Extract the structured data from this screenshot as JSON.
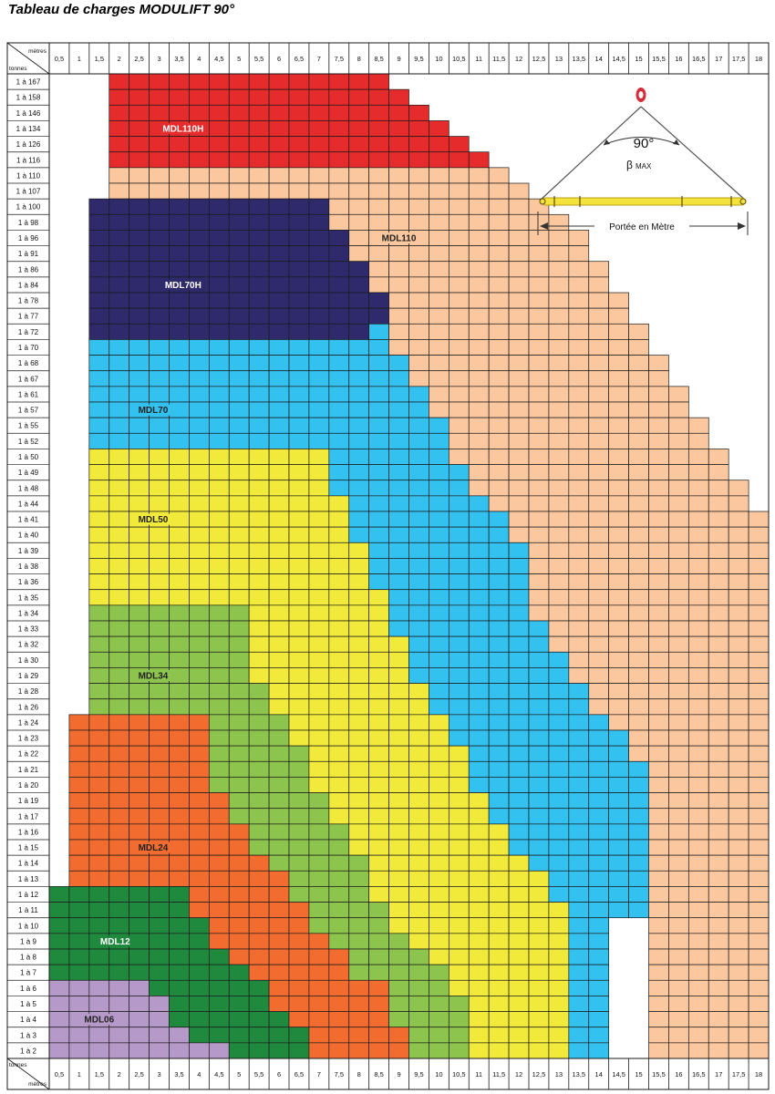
{
  "title": "Tableau de charges MODULIFT 90°",
  "chart_data": {
    "type": "heatmap",
    "title": "Tableau de charges MODULIFT 90°",
    "corner_top": "mètres",
    "corner_bottom": "tonnes",
    "spans_m": [
      "0,5",
      "1",
      "1,5",
      "2",
      "2,5",
      "3",
      "3,5",
      "4",
      "4,5",
      "5",
      "5,5",
      "6",
      "6,5",
      "7",
      "7,5",
      "8",
      "8,5",
      "9",
      "9,5",
      "10",
      "10,5",
      "11",
      "11,5",
      "12",
      "12,5",
      "13",
      "13,5",
      "14",
      "14,5",
      "15",
      "15,5",
      "16",
      "16,5",
      "17",
      "17,5",
      "18"
    ],
    "loads_t": [
      "1 à 167",
      "1 à 158",
      "1 à 146",
      "1 à 134",
      "1 à 126",
      "1 à 116",
      "1 à 110",
      "1 à 107",
      "1 à 100",
      "1 à 98",
      "1 à 96",
      "1 à 91",
      "1 à 86",
      "1 à 84",
      "1 à 78",
      "1 à 77",
      "1 à 72",
      "1 à 70",
      "1 à 68",
      "1 à 67",
      "1 à 61",
      "1 à 57",
      "1 à 55",
      "1 à 52",
      "1 à 50",
      "1 à 49",
      "1 à 48",
      "1 à 44",
      "1 à 41",
      "1 à 40",
      "1 à 39",
      "1 à 38",
      "1 à 36",
      "1 à 35",
      "1 à 34",
      "1 à 33",
      "1 à 32",
      "1 à 30",
      "1 à 29",
      "1 à 28",
      "1 à 26",
      "1 à 24",
      "1 à 23",
      "1 à 22",
      "1 à 21",
      "1 à 20",
      "1 à 19",
      "1 à 17",
      "1 à 16",
      "1 à 15",
      "1 à 14",
      "1 à 13",
      "1 à 12",
      "1 à 11",
      "1 à 10",
      "1 à 9",
      "1 à 8",
      "1 à 7",
      "1 à 6",
      "1 à 5",
      "1 à 4",
      "1 à 3",
      "1 à 2"
    ],
    "models": [
      {
        "name": "MDL110H",
        "color": "#e52b2b",
        "label_color": "#ffffff"
      },
      {
        "name": "MDL110",
        "color": "#fbc79e",
        "label_color": "#222222"
      },
      {
        "name": "MDL70H",
        "color": "#2e2a6b",
        "label_color": "#ffffff"
      },
      {
        "name": "MDL70",
        "color": "#33c1ef",
        "label_color": "#222222"
      },
      {
        "name": "MDL50",
        "color": "#f2ea3a",
        "label_color": "#222222"
      },
      {
        "name": "MDL34",
        "color": "#8cc44d",
        "label_color": "#222222"
      },
      {
        "name": "MDL24",
        "color": "#f26c30",
        "label_color": "#222222"
      },
      {
        "name": "MDL12",
        "color": "#1f8a3e",
        "label_color": "#ffffff"
      },
      {
        "name": "MDL06",
        "color": "#b599c9",
        "label_color": "#222222"
      }
    ],
    "regions": {
      "MDL110H": [
        [
          0,
          5,
          3,
          16
        ],
        [
          1,
          1,
          17,
          17
        ],
        [
          2,
          2,
          17,
          18
        ],
        [
          3,
          3,
          17,
          19
        ],
        [
          4,
          4,
          17,
          20
        ],
        [
          5,
          5,
          17,
          21
        ]
      ],
      "MDL110": [
        [
          6,
          7,
          3,
          21
        ],
        [
          6,
          7,
          22,
          22
        ],
        [
          7,
          7,
          23,
          23
        ],
        [
          8,
          8,
          14,
          24
        ],
        [
          9,
          9,
          14,
          25
        ],
        [
          10,
          10,
          15,
          25
        ],
        [
          10,
          10,
          26,
          26
        ],
        [
          11,
          11,
          15,
          26
        ],
        [
          12,
          12,
          16,
          27
        ],
        [
          13,
          13,
          16,
          27
        ],
        [
          14,
          14,
          16,
          28
        ],
        [
          15,
          15,
          16,
          28
        ],
        [
          16,
          16,
          17,
          29
        ],
        [
          17,
          17,
          17,
          29
        ],
        [
          18,
          18,
          18,
          30
        ],
        [
          19,
          19,
          18,
          30
        ],
        [
          20,
          20,
          19,
          31
        ],
        [
          21,
          21,
          19,
          31
        ],
        [
          22,
          22,
          20,
          32
        ],
        [
          23,
          23,
          20,
          32
        ],
        [
          24,
          24,
          20,
          33
        ],
        [
          25,
          25,
          21,
          33
        ],
        [
          26,
          26,
          21,
          34
        ],
        [
          27,
          27,
          22,
          34
        ],
        [
          28,
          28,
          23,
          35
        ],
        [
          29,
          29,
          23,
          35
        ],
        [
          30,
          30,
          24,
          35
        ],
        [
          31,
          31,
          24,
          36
        ],
        [
          32,
          32,
          24,
          36
        ],
        [
          33,
          34,
          24,
          36
        ],
        [
          35,
          35,
          24,
          36
        ],
        [
          36,
          36,
          25,
          36
        ],
        [
          37,
          38,
          26,
          36
        ],
        [
          39,
          40,
          27,
          36
        ],
        [
          41,
          41,
          28,
          36
        ],
        [
          42,
          43,
          29,
          36
        ],
        [
          44,
          47,
          30,
          36
        ],
        [
          48,
          62,
          30,
          36
        ]
      ],
      "MDL70H": [
        [
          8,
          8,
          2,
          13
        ],
        [
          9,
          9,
          2,
          13
        ],
        [
          10,
          10,
          2,
          14
        ],
        [
          11,
          11,
          2,
          14
        ],
        [
          12,
          12,
          2,
          15
        ],
        [
          13,
          15,
          2,
          15
        ],
        [
          14,
          15,
          16,
          16
        ],
        [
          16,
          16,
          2,
          16
        ]
      ],
      "MDL70": [
        [
          16,
          16,
          16,
          16
        ],
        [
          17,
          17,
          2,
          16
        ],
        [
          18,
          18,
          2,
          17
        ],
        [
          19,
          19,
          2,
          17
        ],
        [
          20,
          20,
          2,
          18
        ],
        [
          21,
          21,
          2,
          18
        ],
        [
          22,
          22,
          2,
          19
        ],
        [
          23,
          23,
          2,
          19
        ],
        [
          24,
          24,
          14,
          19
        ],
        [
          25,
          25,
          14,
          20
        ],
        [
          26,
          26,
          14,
          20
        ],
        [
          27,
          27,
          15,
          21
        ],
        [
          28,
          28,
          15,
          22
        ],
        [
          29,
          29,
          15,
          22
        ],
        [
          30,
          30,
          16,
          23
        ],
        [
          31,
          31,
          16,
          23
        ],
        [
          32,
          32,
          16,
          23
        ],
        [
          33,
          33,
          17,
          23
        ],
        [
          34,
          34,
          17,
          23
        ],
        [
          35,
          35,
          17,
          24
        ],
        [
          36,
          36,
          18,
          24
        ],
        [
          37,
          37,
          18,
          25
        ],
        [
          38,
          38,
          18,
          25
        ],
        [
          39,
          39,
          19,
          26
        ],
        [
          40,
          40,
          19,
          26
        ],
        [
          41,
          41,
          20,
          27
        ],
        [
          42,
          42,
          20,
          28
        ],
        [
          43,
          43,
          21,
          28
        ],
        [
          44,
          44,
          21,
          29
        ],
        [
          45,
          45,
          21,
          29
        ],
        [
          46,
          46,
          22,
          29
        ],
        [
          47,
          47,
          22,
          29
        ],
        [
          48,
          48,
          23,
          29
        ],
        [
          49,
          49,
          23,
          29
        ],
        [
          50,
          50,
          24,
          29
        ],
        [
          51,
          51,
          25,
          29
        ],
        [
          52,
          52,
          25,
          29
        ],
        [
          53,
          53,
          26,
          29
        ],
        [
          54,
          62,
          26,
          27
        ]
      ],
      "MDL50": [
        [
          24,
          24,
          2,
          13
        ],
        [
          25,
          25,
          2,
          13
        ],
        [
          26,
          26,
          2,
          13
        ],
        [
          27,
          27,
          2,
          14
        ],
        [
          28,
          28,
          2,
          14
        ],
        [
          29,
          29,
          2,
          14
        ],
        [
          30,
          30,
          2,
          15
        ],
        [
          31,
          31,
          2,
          15
        ],
        [
          32,
          32,
          2,
          15
        ],
        [
          33,
          33,
          2,
          16
        ],
        [
          34,
          34,
          10,
          16
        ],
        [
          35,
          35,
          10,
          16
        ],
        [
          36,
          36,
          10,
          17
        ],
        [
          37,
          37,
          10,
          17
        ],
        [
          38,
          38,
          10,
          17
        ],
        [
          39,
          39,
          11,
          18
        ],
        [
          40,
          40,
          11,
          18
        ],
        [
          41,
          41,
          12,
          19
        ],
        [
          42,
          42,
          12,
          19
        ],
        [
          43,
          43,
          13,
          20
        ],
        [
          44,
          44,
          13,
          20
        ],
        [
          45,
          45,
          13,
          20
        ],
        [
          46,
          46,
          14,
          21
        ],
        [
          47,
          47,
          14,
          21
        ],
        [
          48,
          48,
          15,
          22
        ],
        [
          49,
          49,
          15,
          22
        ],
        [
          50,
          50,
          16,
          23
        ],
        [
          51,
          51,
          16,
          24
        ],
        [
          52,
          52,
          16,
          24
        ],
        [
          53,
          53,
          17,
          25
        ],
        [
          54,
          54,
          17,
          25
        ],
        [
          55,
          55,
          18,
          25
        ],
        [
          56,
          56,
          19,
          25
        ],
        [
          57,
          57,
          20,
          25
        ],
        [
          58,
          58,
          20,
          25
        ],
        [
          59,
          62,
          21,
          25
        ]
      ],
      "MDL34": [
        [
          34,
          34,
          2,
          9
        ],
        [
          35,
          35,
          2,
          9
        ],
        [
          36,
          36,
          2,
          9
        ],
        [
          37,
          37,
          2,
          9
        ],
        [
          38,
          38,
          2,
          9
        ],
        [
          39,
          39,
          2,
          10
        ],
        [
          40,
          40,
          2,
          10
        ],
        [
          41,
          41,
          8,
          11
        ],
        [
          42,
          42,
          8,
          11
        ],
        [
          43,
          43,
          8,
          12
        ],
        [
          44,
          44,
          8,
          12
        ],
        [
          45,
          45,
          8,
          12
        ],
        [
          46,
          46,
          9,
          13
        ],
        [
          47,
          47,
          9,
          13
        ],
        [
          48,
          48,
          10,
          14
        ],
        [
          49,
          49,
          10,
          14
        ],
        [
          50,
          50,
          11,
          15
        ],
        [
          51,
          51,
          12,
          15
        ],
        [
          52,
          52,
          12,
          15
        ],
        [
          53,
          53,
          13,
          16
        ],
        [
          54,
          54,
          13,
          16
        ],
        [
          55,
          55,
          14,
          17
        ],
        [
          56,
          56,
          15,
          18
        ],
        [
          57,
          57,
          15,
          19
        ],
        [
          58,
          58,
          16,
          19
        ],
        [
          59,
          59,
          17,
          20
        ],
        [
          60,
          60,
          17,
          20
        ],
        [
          61,
          61,
          18,
          20
        ],
        [
          62,
          62,
          18,
          20
        ]
      ],
      "MDL24": [
        [
          41,
          41,
          1,
          7
        ],
        [
          42,
          42,
          1,
          7
        ],
        [
          43,
          43,
          1,
          7
        ],
        [
          44,
          44,
          1,
          7
        ],
        [
          45,
          45,
          1,
          7
        ],
        [
          46,
          46,
          1,
          8
        ],
        [
          47,
          47,
          1,
          8
        ],
        [
          48,
          48,
          1,
          9
        ],
        [
          49,
          49,
          1,
          9
        ],
        [
          50,
          50,
          1,
          10
        ],
        [
          51,
          51,
          1,
          11
        ],
        [
          52,
          52,
          7,
          11
        ],
        [
          53,
          53,
          7,
          12
        ],
        [
          54,
          54,
          8,
          12
        ],
        [
          55,
          55,
          8,
          13
        ],
        [
          56,
          56,
          9,
          14
        ],
        [
          57,
          57,
          10,
          14
        ],
        [
          58,
          58,
          11,
          16
        ],
        [
          59,
          59,
          11,
          16
        ],
        [
          60,
          60,
          12,
          16
        ],
        [
          61,
          61,
          13,
          17
        ],
        [
          62,
          62,
          13,
          17
        ]
      ],
      "MDL12": [
        [
          52,
          52,
          0,
          6
        ],
        [
          53,
          53,
          0,
          6
        ],
        [
          54,
          54,
          0,
          7
        ],
        [
          55,
          55,
          0,
          7
        ],
        [
          56,
          56,
          0,
          8
        ],
        [
          57,
          57,
          0,
          9
        ],
        [
          58,
          58,
          5,
          10
        ],
        [
          59,
          59,
          6,
          10
        ],
        [
          60,
          60,
          6,
          11
        ],
        [
          61,
          61,
          7,
          12
        ],
        [
          62,
          62,
          9,
          12
        ]
      ],
      "MDL06": [
        [
          58,
          58,
          0,
          4
        ],
        [
          59,
          59,
          0,
          5
        ],
        [
          60,
          60,
          0,
          5
        ],
        [
          61,
          61,
          0,
          6
        ],
        [
          62,
          62,
          0,
          8
        ]
      ]
    },
    "labels": [
      {
        "model": "MDL110H",
        "row": 3,
        "col": 6.7
      },
      {
        "model": "MDL110",
        "row": 10,
        "col": 17.5
      },
      {
        "model": "MDL70H",
        "row": 13,
        "col": 6.7
      },
      {
        "model": "MDL70",
        "row": 21,
        "col": 5.2
      },
      {
        "model": "MDL50",
        "row": 28,
        "col": 5.2
      },
      {
        "model": "MDL34",
        "row": 38,
        "col": 5.2
      },
      {
        "model": "MDL24",
        "row": 49,
        "col": 5.2
      },
      {
        "model": "MDL12",
        "row": 55,
        "col": 3.3
      },
      {
        "model": "MDL06",
        "row": 60,
        "col": 2.5
      }
    ],
    "diagram": {
      "angle_label": "90°",
      "beta_label": "β",
      "max_label": "MAX",
      "span_label": "Portée en Mètre"
    }
  }
}
